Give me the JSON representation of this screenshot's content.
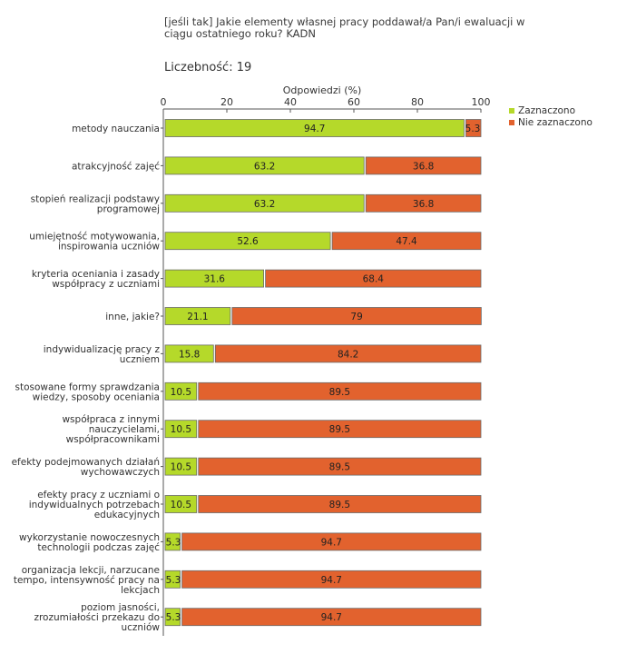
{
  "title": "[jeśli tak]  Jakie elementy własnej pracy poddawał/a Pan/i ewaluacji w ciągu ostatniego roku? KADN",
  "count_label": "Liczebność:",
  "count_value": "19",
  "colors": {
    "selected": "#b5d92a",
    "not_selected": "#e2622e"
  },
  "chart_data": {
    "type": "bar",
    "orientation": "horizontal",
    "stacked": true,
    "xlabel": "Odpowiedzi (%)",
    "xlim": [
      0,
      100
    ],
    "xticks": [
      0,
      20,
      40,
      60,
      80,
      100
    ],
    "legend_position": "top-right",
    "categories": [
      [
        "metody nauczania"
      ],
      [
        "atrakcyjność zajęć"
      ],
      [
        "stopień realizacji podstawy",
        "programowej"
      ],
      [
        "umiejętność motywowania,",
        "inspirowania uczniów"
      ],
      [
        "kryteria oceniania  i zasady",
        "współpracy z uczniami"
      ],
      [
        "inne, jakie?"
      ],
      [
        "indywidualizację pracy z",
        "uczniem"
      ],
      [
        "stosowane formy sprawdzania",
        "wiedzy, sposoby oceniania"
      ],
      [
        "współpraca z innymi",
        "nauczycielami,",
        "współpracownikami"
      ],
      [
        "efekty podejmowanych działań",
        "wychowawczych"
      ],
      [
        "efekty pracy z uczniami o",
        "indywidualnych potrzebach",
        "edukacyjnych"
      ],
      [
        "wykorzystanie nowoczesnych",
        "technologii podczas zajęć"
      ],
      [
        "organizacja lekcji, narzucane",
        "tempo, intensywność pracy na",
        "lekcjach"
      ],
      [
        "poziom jasności,",
        "zrozumiałości przekazu do",
        "uczniów"
      ]
    ],
    "series": [
      {
        "name": "Zaznaczono",
        "values": [
          94.7,
          63.2,
          63.2,
          52.6,
          31.6,
          21.1,
          15.8,
          10.5,
          10.5,
          10.5,
          10.5,
          5.3,
          5.3,
          5.3
        ]
      },
      {
        "name": "Nie zaznaczono",
        "values": [
          5.3,
          36.8,
          36.8,
          47.4,
          68.4,
          79,
          84.2,
          89.5,
          89.5,
          89.5,
          89.5,
          94.7,
          94.7,
          94.7
        ]
      }
    ]
  }
}
